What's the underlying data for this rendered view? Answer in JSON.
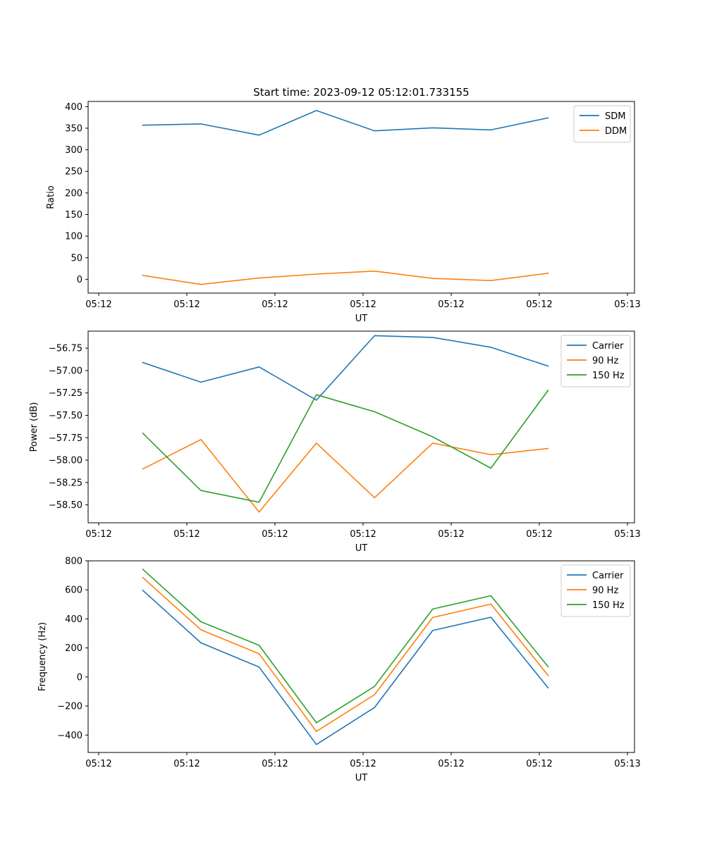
{
  "chart_data": [
    {
      "type": "line",
      "title": "Start time: 2023-09-12 05:12:01.733155",
      "xlabel": "UT",
      "ylabel": "Ratio",
      "xlim": [
        0,
        6.2
      ],
      "ylim": [
        -32,
        412
      ],
      "yticks": [
        0,
        50,
        100,
        150,
        200,
        250,
        300,
        350,
        400
      ],
      "ytick_labels": [
        "0",
        "50",
        "100",
        "150",
        "200",
        "250",
        "300",
        "350",
        "400"
      ],
      "xticks": [
        0.12,
        1.12,
        2.12,
        3.12,
        4.12,
        5.12,
        6.12
      ],
      "xtick_labels": [
        "05:12",
        "05:12",
        "05:12",
        "05:12",
        "05:12",
        "05:12",
        "05:13"
      ],
      "x": [
        0.62,
        1.28,
        1.94,
        2.59,
        3.25,
        3.91,
        4.57,
        5.22
      ],
      "legend_position": "top-right",
      "series": [
        {
          "name": "SDM",
          "color": "#1f77b4",
          "values": [
            357,
            360,
            334,
            391,
            344,
            351,
            346,
            374
          ]
        },
        {
          "name": "DDM",
          "color": "#ff7f0e",
          "values": [
            9,
            -12,
            3,
            12,
            19,
            2,
            -3,
            14
          ]
        }
      ]
    },
    {
      "type": "line",
      "title": "",
      "xlabel": "UT",
      "ylabel": "Power (dB)",
      "xlim": [
        0,
        6.2
      ],
      "ylim": [
        -58.7,
        -56.56
      ],
      "yticks": [
        -58.5,
        -58.25,
        -58.0,
        -57.75,
        -57.5,
        -57.25,
        -57.0,
        -56.75
      ],
      "ytick_labels": [
        "−58.50",
        "−58.25",
        "−58.00",
        "−57.75",
        "−57.50",
        "−57.25",
        "−57.00",
        "−56.75"
      ],
      "xticks": [
        0.12,
        1.12,
        2.12,
        3.12,
        4.12,
        5.12,
        6.12
      ],
      "xtick_labels": [
        "05:12",
        "05:12",
        "05:12",
        "05:12",
        "05:12",
        "05:12",
        "05:13"
      ],
      "x": [
        0.62,
        1.28,
        1.94,
        2.59,
        3.25,
        3.91,
        4.57,
        5.22
      ],
      "legend_position": "top-right",
      "series": [
        {
          "name": "Carrier",
          "color": "#1f77b4",
          "values": [
            -56.91,
            -57.13,
            -56.96,
            -57.33,
            -56.61,
            -56.63,
            -56.74,
            -56.95
          ]
        },
        {
          "name": "90 Hz",
          "color": "#ff7f0e",
          "values": [
            -58.1,
            -57.77,
            -58.58,
            -57.81,
            -58.42,
            -57.81,
            -57.94,
            -57.87
          ]
        },
        {
          "name": "150 Hz",
          "color": "#2ca02c",
          "values": [
            -57.7,
            -58.34,
            -58.47,
            -57.27,
            -57.46,
            -57.74,
            -58.09,
            -57.22
          ]
        }
      ]
    },
    {
      "type": "line",
      "title": "",
      "xlabel": "UT",
      "ylabel": "Frequency (Hz)",
      "xlim": [
        0,
        6.2
      ],
      "ylim": [
        -520,
        800
      ],
      "yticks": [
        -400,
        -200,
        0,
        200,
        400,
        600,
        800
      ],
      "ytick_labels": [
        "−400",
        "−200",
        "0",
        "200",
        "400",
        "600",
        "800"
      ],
      "xticks": [
        0.12,
        1.12,
        2.12,
        3.12,
        4.12,
        5.12,
        6.12
      ],
      "xtick_labels": [
        "05:12",
        "05:12",
        "05:12",
        "05:12",
        "05:12",
        "05:12",
        "05:13"
      ],
      "x": [
        0.62,
        1.28,
        1.94,
        2.59,
        3.25,
        3.91,
        4.57,
        5.22
      ],
      "legend_position": "top-right",
      "series": [
        {
          "name": "Carrier",
          "color": "#1f77b4",
          "values": [
            597,
            235,
            68,
            -465,
            -210,
            320,
            412,
            -75
          ]
        },
        {
          "name": "90 Hz",
          "color": "#ff7f0e",
          "values": [
            685,
            325,
            160,
            -375,
            -122,
            410,
            502,
            10
          ]
        },
        {
          "name": "150 Hz",
          "color": "#2ca02c",
          "values": [
            742,
            380,
            218,
            -315,
            -65,
            468,
            560,
            70
          ]
        }
      ]
    }
  ]
}
